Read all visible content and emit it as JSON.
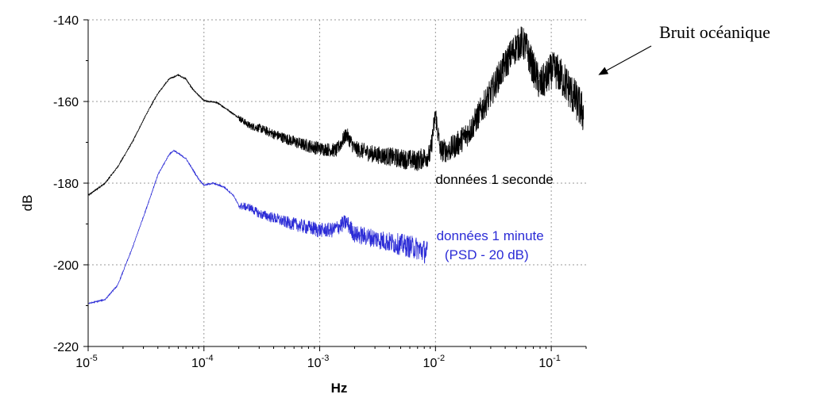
{
  "chart_data": {
    "type": "line",
    "xlabel": "Hz",
    "ylabel": "dB",
    "x_scale": "log",
    "xlim": [
      1e-05,
      0.2
    ],
    "ylim": [
      -220,
      -140
    ],
    "x_ticks": [
      {
        "value": 1e-05,
        "base": "10",
        "exp": "-5"
      },
      {
        "value": 0.0001,
        "base": "10",
        "exp": "-4"
      },
      {
        "value": 0.001,
        "base": "10",
        "exp": "-3"
      },
      {
        "value": 0.01,
        "base": "10",
        "exp": "-2"
      },
      {
        "value": 0.1,
        "base": "10",
        "exp": "-1"
      }
    ],
    "y_ticks": [
      {
        "value": -140,
        "label": "-140"
      },
      {
        "value": -160,
        "label": "-160"
      },
      {
        "value": -180,
        "label": "-180"
      },
      {
        "value": -200,
        "label": "-200"
      },
      {
        "value": -220,
        "label": "-220"
      }
    ],
    "grid": true,
    "series": [
      {
        "name": "données 1 seconde",
        "color": "#000000",
        "points": [
          [
            1e-05,
            -183
          ],
          [
            1.4e-05,
            -180
          ],
          [
            1.8e-05,
            -176
          ],
          [
            2.4e-05,
            -170
          ],
          [
            3.2e-05,
            -163
          ],
          [
            4e-05,
            -158
          ],
          [
            5e-05,
            -154.5
          ],
          [
            6e-05,
            -153.5
          ],
          [
            7e-05,
            -154.5
          ],
          [
            8e-05,
            -157
          ],
          [
            0.0001,
            -159.8
          ],
          [
            0.00013,
            -160.3
          ],
          [
            0.00016,
            -162
          ],
          [
            0.0002,
            -164
          ],
          [
            0.00025,
            -166
          ],
          [
            0.0003,
            -166.5
          ],
          [
            0.0004,
            -168
          ],
          [
            0.0005,
            -169
          ],
          [
            0.0007,
            -170.5
          ],
          [
            0.001,
            -171.5
          ],
          [
            0.0014,
            -172
          ],
          [
            0.0017,
            -168
          ],
          [
            0.002,
            -171.5
          ],
          [
            0.003,
            -173
          ],
          [
            0.004,
            -173.5
          ],
          [
            0.005,
            -174
          ],
          [
            0.007,
            -174.5
          ],
          [
            0.009,
            -173
          ],
          [
            0.01,
            -163
          ],
          [
            0.011,
            -172
          ],
          [
            0.013,
            -172
          ],
          [
            0.016,
            -170
          ],
          [
            0.02,
            -167
          ],
          [
            0.025,
            -162
          ],
          [
            0.03,
            -158
          ],
          [
            0.035,
            -154
          ],
          [
            0.04,
            -151
          ],
          [
            0.045,
            -148.5
          ],
          [
            0.05,
            -146.5
          ],
          [
            0.055,
            -145.5
          ],
          [
            0.06,
            -146.5
          ],
          [
            0.07,
            -152
          ],
          [
            0.08,
            -156
          ],
          [
            0.09,
            -154.5
          ],
          [
            0.1,
            -152.5
          ],
          [
            0.11,
            -152.5
          ],
          [
            0.13,
            -155
          ],
          [
            0.15,
            -158
          ],
          [
            0.17,
            -160.5
          ],
          [
            0.19,
            -163
          ]
        ]
      },
      {
        "name": "données 1 minute",
        "note": "(PSD - 20 dB)",
        "color": "#2b2bd6",
        "points": [
          [
            1e-05,
            -209.5
          ],
          [
            1.4e-05,
            -208.5
          ],
          [
            1.8e-05,
            -205
          ],
          [
            2.4e-05,
            -196
          ],
          [
            3.2e-05,
            -186
          ],
          [
            4e-05,
            -178
          ],
          [
            5e-05,
            -173
          ],
          [
            5.5e-05,
            -172
          ],
          [
            7e-05,
            -174
          ],
          [
            9e-05,
            -179
          ],
          [
            0.0001,
            -180.5
          ],
          [
            0.00012,
            -180
          ],
          [
            0.00015,
            -181
          ],
          [
            0.00018,
            -183
          ],
          [
            0.0002,
            -185.5
          ],
          [
            0.00025,
            -186
          ],
          [
            0.0003,
            -187.5
          ],
          [
            0.0004,
            -188.5
          ],
          [
            0.0005,
            -189.5
          ],
          [
            0.0007,
            -190.5
          ],
          [
            0.001,
            -191.5
          ],
          [
            0.0013,
            -191.5
          ],
          [
            0.0017,
            -189.5
          ],
          [
            0.002,
            -192.5
          ],
          [
            0.003,
            -193.5
          ],
          [
            0.004,
            -194.5
          ],
          [
            0.005,
            -195
          ],
          [
            0.006,
            -195.5
          ],
          [
            0.007,
            -196
          ],
          [
            0.0085,
            -197
          ]
        ]
      }
    ],
    "annotations": [
      {
        "text": "données 1 seconde",
        "x": 0.01,
        "y": -179
      },
      {
        "text": "données 1 minute",
        "x": 0.0102,
        "y": -192.8
      },
      {
        "text": "(PSD - 20 dB)",
        "x": 0.012,
        "y": -197.5
      },
      {
        "text": "Bruit océanique",
        "arrow_to": [
          0.21,
          -154.5
        ]
      }
    ]
  }
}
